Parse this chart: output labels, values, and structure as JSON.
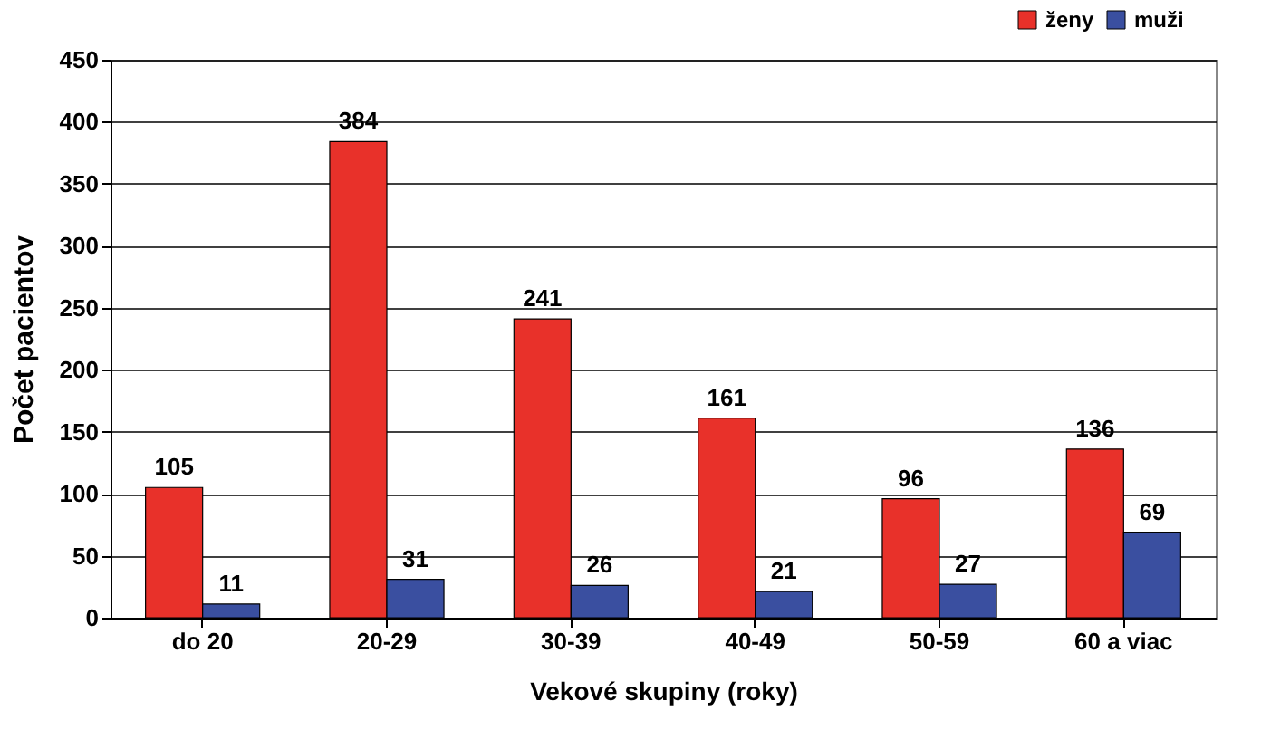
{
  "chart_data": {
    "type": "bar",
    "xlabel": "Vekové skupiny (roky)",
    "ylabel": "Počet pacientov",
    "categories": [
      "do 20",
      "20-29",
      "30-39",
      "40-49",
      "50-59",
      "60 a viac"
    ],
    "series": [
      {
        "name": "ženy",
        "color": "#e8312a",
        "values": [
          105,
          384,
          241,
          161,
          96,
          136
        ]
      },
      {
        "name": "muži",
        "color": "#3a4fa0",
        "values": [
          11,
          31,
          26,
          21,
          27,
          69
        ]
      }
    ],
    "ylim": [
      0,
      450
    ],
    "yticks": [
      0,
      50,
      100,
      150,
      200,
      250,
      300,
      350,
      400,
      450
    ],
    "grid": "y",
    "legend": "top right",
    "data_labels": true
  }
}
